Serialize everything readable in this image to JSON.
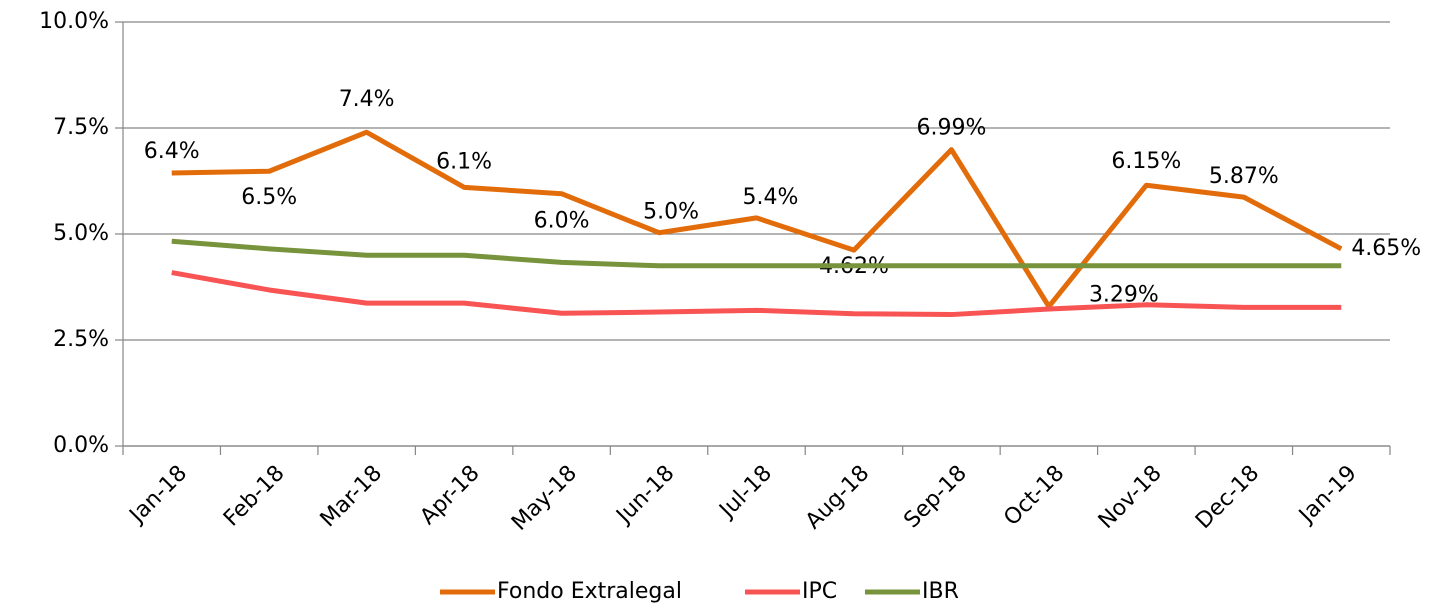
{
  "chart_data": {
    "type": "line",
    "categories": [
      "Jan-18",
      "Feb-18",
      "Mar-18",
      "Apr-18",
      "May-18",
      "Jun-18",
      "Jul-18",
      "Aug-18",
      "Sep-18",
      "Oct-18",
      "Nov-18",
      "Dec-18",
      "Jan-19"
    ],
    "series": [
      {
        "name": "Fondo Extralegal",
        "color": "#e36c0a",
        "values": [
          6.44,
          6.48,
          7.4,
          6.1,
          5.95,
          5.03,
          5.38,
          4.62,
          6.99,
          3.29,
          6.15,
          5.87,
          4.65
        ],
        "value_labels": [
          "6.4%",
          "6.5%",
          "7.4%",
          "6.1%",
          "6.0%",
          "5.0%",
          "5.4%",
          "4.62%",
          "6.99%",
          "3.29%",
          "6.15%",
          "5.87%",
          "4.65%"
        ]
      },
      {
        "name": "IPC",
        "color": "#f85454",
        "values": [
          4.09,
          3.68,
          3.37,
          3.37,
          3.13,
          3.16,
          3.2,
          3.12,
          3.1,
          3.23,
          3.33,
          3.27,
          3.27
        ]
      },
      {
        "name": "IBR",
        "color": "#77933c",
        "values": [
          4.83,
          4.65,
          4.5,
          4.5,
          4.33,
          4.25,
          4.25,
          4.25,
          4.25,
          4.25,
          4.25,
          4.25,
          4.25
        ]
      }
    ],
    "ylim": [
      0,
      10
    ],
    "yticks": [
      {
        "value": 0,
        "label": "0.0%"
      },
      {
        "value": 2.5,
        "label": "2.5%"
      },
      {
        "value": 5,
        "label": "5.0%"
      },
      {
        "value": 7.5,
        "label": "7.5%"
      },
      {
        "value": 10,
        "label": "10.0%"
      }
    ],
    "grid": true,
    "legend": "bottom"
  }
}
